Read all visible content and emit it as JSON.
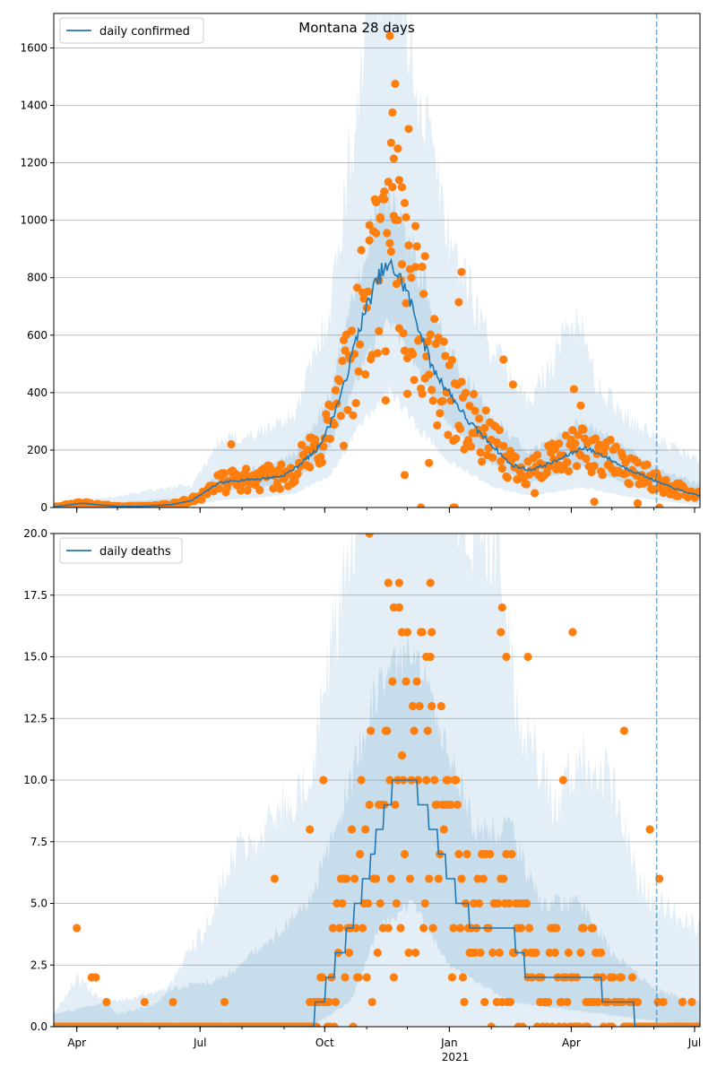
{
  "chart_data": [
    {
      "type": "line",
      "title": "Montana 28 days",
      "legend": [
        "daily confirmed"
      ],
      "legend_position": "top-left",
      "grid": "y",
      "ylim": [
        0,
        1720
      ],
      "yticks": [
        0,
        200,
        400,
        600,
        800,
        1000,
        1200,
        1400,
        1600
      ],
      "xlim": [
        "2020-03-15",
        "2021-07-05"
      ],
      "forecast_start": "2021-06-03",
      "colors": {
        "line": "#1f77b4",
        "points": "#ff7f0e",
        "band": "#1f77b4",
        "vline": "#1f77b4"
      },
      "line_anchors": [
        [
          "2020-03-15",
          2
        ],
        [
          "2020-03-28",
          10
        ],
        [
          "2020-04-05",
          15
        ],
        [
          "2020-04-15",
          10
        ],
        [
          "2020-05-01",
          4
        ],
        [
          "2020-05-20",
          4
        ],
        [
          "2020-06-10",
          10
        ],
        [
          "2020-06-25",
          25
        ],
        [
          "2020-07-05",
          55
        ],
        [
          "2020-07-15",
          85
        ],
        [
          "2020-07-30",
          95
        ],
        [
          "2020-08-15",
          100
        ],
        [
          "2020-08-31",
          110
        ],
        [
          "2020-09-10",
          140
        ],
        [
          "2020-09-25",
          200
        ],
        [
          "2020-10-05",
          290
        ],
        [
          "2020-10-15",
          420
        ],
        [
          "2020-10-25",
          600
        ],
        [
          "2020-11-05",
          750
        ],
        [
          "2020-11-12",
          820
        ],
        [
          "2020-11-20",
          840
        ],
        [
          "2020-11-30",
          760
        ],
        [
          "2020-12-10",
          620
        ],
        [
          "2020-12-20",
          480
        ],
        [
          "2021-01-01",
          400
        ],
        [
          "2021-01-15",
          300
        ],
        [
          "2021-02-01",
          220
        ],
        [
          "2021-02-15",
          150
        ],
        [
          "2021-03-01",
          130
        ],
        [
          "2021-03-20",
          160
        ],
        [
          "2021-04-10",
          210
        ],
        [
          "2021-04-25",
          180
        ],
        [
          "2021-05-10",
          140
        ],
        [
          "2021-05-25",
          110
        ],
        [
          "2021-06-03",
          90
        ],
        [
          "2021-06-20",
          60
        ],
        [
          "2021-07-05",
          40
        ]
      ],
      "line_style": "jagged",
      "line_seed": 7,
      "points_seed": 42,
      "points_noise": 0.42,
      "points": [
        [
          "2020-11-18",
          1642
        ],
        [
          "2020-11-22",
          1475
        ],
        [
          "2020-11-20",
          1375
        ],
        [
          "2020-12-02",
          1318
        ],
        [
          "2020-11-19",
          1270
        ],
        [
          "2020-11-24",
          1250
        ],
        [
          "2020-11-21",
          1215
        ],
        [
          "2020-11-25",
          1140
        ],
        [
          "2020-11-27",
          1115
        ],
        [
          "2020-11-14",
          1100
        ],
        [
          "2020-11-08",
          1063
        ],
        [
          "2020-11-29",
          1060
        ],
        [
          "2020-11-11",
          1010
        ],
        [
          "2020-11-30",
          1010
        ],
        [
          "2020-12-07",
          980
        ],
        [
          "2020-11-03",
          930
        ],
        [
          "2020-12-14",
          875
        ],
        [
          "2020-12-12",
          838
        ],
        [
          "2021-01-10",
          820
        ],
        [
          "2020-12-04",
          800
        ],
        [
          "2020-11-10",
          790
        ],
        [
          "2021-01-08",
          715
        ],
        [
          "2020-11-15",
          373
        ],
        [
          "2020-12-01",
          396
        ],
        [
          "2020-11-29",
          113
        ],
        [
          "2020-12-17",
          155
        ],
        [
          "2021-01-04",
          0
        ],
        [
          "2021-01-05",
          0
        ],
        [
          "2020-12-11",
          0
        ],
        [
          "2021-02-10",
          515
        ],
        [
          "2021-02-17",
          428
        ],
        [
          "2021-04-03",
          412
        ],
        [
          "2021-04-08",
          355
        ],
        [
          "2020-10-15",
          215
        ],
        [
          "2020-09-20",
          140
        ],
        [
          "2020-07-24",
          220
        ],
        [
          "2021-03-05",
          50
        ],
        [
          "2021-04-18",
          20
        ],
        [
          "2021-05-20",
          15
        ],
        [
          "2021-06-05",
          0
        ]
      ],
      "band_inner": [
        [
          "2020-03-15",
          1
        ],
        [
          "2020-06-25",
          18
        ],
        [
          "2020-07-15",
          55
        ],
        [
          "2020-08-15",
          70
        ],
        [
          "2020-09-10",
          95
        ],
        [
          "2020-10-05",
          210
        ],
        [
          "2020-10-25",
          450
        ],
        [
          "2020-11-12",
          620
        ],
        [
          "2020-11-20",
          640
        ],
        [
          "2020-12-10",
          460
        ],
        [
          "2021-01-01",
          290
        ],
        [
          "2021-02-01",
          150
        ],
        [
          "2021-03-01",
          85
        ],
        [
          "2021-04-10",
          140
        ],
        [
          "2021-05-10",
          85
        ],
        [
          "2021-06-03",
          55
        ],
        [
          "2021-07-05",
          20
        ]
      ],
      "band_inner_top": [
        [
          "2020-03-15",
          4
        ],
        [
          "2020-06-25",
          35
        ],
        [
          "2020-07-15",
          120
        ],
        [
          "2020-08-15",
          140
        ],
        [
          "2020-09-10",
          190
        ],
        [
          "2020-10-05",
          390
        ],
        [
          "2020-10-25",
          790
        ],
        [
          "2020-11-12",
          1080
        ],
        [
          "2020-11-20",
          1100
        ],
        [
          "2020-12-10",
          820
        ],
        [
          "2021-01-01",
          540
        ],
        [
          "2021-02-01",
          310
        ],
        [
          "2021-03-01",
          190
        ],
        [
          "2021-04-10",
          300
        ],
        [
          "2021-05-10",
          210
        ],
        [
          "2021-06-03",
          140
        ],
        [
          "2021-07-05",
          80
        ]
      ],
      "band_outer": [
        [
          "2020-03-15",
          0
        ],
        [
          "2020-06-25",
          5
        ],
        [
          "2020-07-15",
          25
        ],
        [
          "2020-08-15",
          35
        ],
        [
          "2020-09-10",
          50
        ],
        [
          "2020-10-05",
          110
        ],
        [
          "2020-10-25",
          270
        ],
        [
          "2020-11-12",
          380
        ],
        [
          "2020-11-20",
          400
        ],
        [
          "2020-12-10",
          270
        ],
        [
          "2021-01-01",
          160
        ],
        [
          "2021-02-01",
          75
        ],
        [
          "2021-03-01",
          40
        ],
        [
          "2021-04-10",
          70
        ],
        [
          "2021-05-10",
          40
        ],
        [
          "2021-06-03",
          25
        ],
        [
          "2021-07-05",
          8
        ]
      ],
      "band_outer_top": [
        [
          "2020-03-15",
          8
        ],
        [
          "2020-06-25",
          80
        ],
        [
          "2020-07-15",
          230
        ],
        [
          "2020-08-15",
          260
        ],
        [
          "2020-09-10",
          330
        ],
        [
          "2020-10-05",
          700
        ],
        [
          "2020-10-25",
          1400
        ],
        [
          "2020-11-05",
          1900
        ],
        [
          "2020-11-20",
          1900
        ],
        [
          "2020-12-10",
          1450
        ],
        [
          "2021-01-01",
          950
        ],
        [
          "2021-02-01",
          560
        ],
        [
          "2021-03-01",
          360
        ],
        [
          "2021-04-05",
          680
        ],
        [
          "2021-04-20",
          420
        ],
        [
          "2021-05-10",
          330
        ],
        [
          "2021-06-03",
          240
        ],
        [
          "2021-07-05",
          160
        ]
      ]
    },
    {
      "type": "line",
      "title": "",
      "legend": [
        "daily deaths"
      ],
      "legend_position": "top-left",
      "grid": "y",
      "ylim": [
        0,
        20
      ],
      "yticks": [
        0.0,
        2.5,
        5.0,
        7.5,
        10.0,
        12.5,
        15.0,
        17.5,
        20.0
      ],
      "yticklabels": [
        "0.0",
        "2.5",
        "5.0",
        "7.5",
        "10.0",
        "12.5",
        "15.0",
        "17.5",
        "20.0"
      ],
      "xlim": [
        "2020-03-15",
        "2021-07-05"
      ],
      "xticks": [
        "2020-04-01",
        "2020-07-01",
        "2020-10-01",
        "2021-01-01",
        "2021-04-01",
        "2021-07-01"
      ],
      "xticklabels": [
        "Apr",
        "Jul",
        "Oct",
        "Jan",
        "Apr",
        "Jul"
      ],
      "xsublabel": "2021",
      "forecast_start": "2021-06-03",
      "colors": {
        "line": "#1f77b4",
        "points": "#ff7f0e",
        "band": "#1f77b4",
        "vline": "#1f77b4"
      },
      "line_anchors": [
        [
          "2020-03-15",
          0
        ],
        [
          "2020-07-10",
          0
        ],
        [
          "2020-09-20",
          0
        ],
        [
          "2020-10-05",
          2
        ],
        [
          "2020-10-20",
          4
        ],
        [
          "2020-11-01",
          6
        ],
        [
          "2020-11-10",
          8
        ],
        [
          "2020-11-20",
          9.5
        ],
        [
          "2020-12-05",
          10
        ],
        [
          "2020-12-20",
          8
        ],
        [
          "2021-01-01",
          6
        ],
        [
          "2021-01-20",
          4
        ],
        [
          "2021-02-15",
          4
        ],
        [
          "2021-03-01",
          2
        ],
        [
          "2021-04-01",
          2
        ],
        [
          "2021-04-15",
          2
        ],
        [
          "2021-05-01",
          1
        ],
        [
          "2021-06-03",
          0
        ],
        [
          "2021-07-05",
          0
        ]
      ],
      "line_style": "steps",
      "line_seed": 11,
      "points_seed": 5,
      "points_noise": 0.6,
      "points": [
        [
          "2020-11-03",
          20
        ],
        [
          "2020-11-17",
          18
        ],
        [
          "2020-11-25",
          18
        ],
        [
          "2020-12-18",
          18
        ],
        [
          "2020-11-21",
          17
        ],
        [
          "2021-02-09",
          17
        ],
        [
          "2020-11-27",
          16
        ],
        [
          "2020-12-19",
          16
        ],
        [
          "2021-02-08",
          16
        ],
        [
          "2021-04-02",
          16
        ],
        [
          "2021-02-12",
          15
        ],
        [
          "2020-12-15",
          15
        ],
        [
          "2021-02-28",
          15
        ],
        [
          "2021-05-10",
          12
        ],
        [
          "2020-09-30",
          10
        ],
        [
          "2021-03-26",
          10
        ],
        [
          "2020-09-20",
          8
        ],
        [
          "2021-05-29",
          8
        ],
        [
          "2020-04-01",
          4
        ],
        [
          "2020-04-12",
          2
        ],
        [
          "2020-04-15",
          2
        ],
        [
          "2020-08-25",
          6
        ],
        [
          "2021-06-05",
          6
        ]
      ],
      "band_inner": [
        [
          "2020-03-15",
          0
        ],
        [
          "2020-09-20",
          0
        ],
        [
          "2020-10-20",
          1
        ],
        [
          "2020-11-10",
          4
        ],
        [
          "2020-12-05",
          5
        ],
        [
          "2021-01-01",
          2.5
        ],
        [
          "2021-02-15",
          1
        ],
        [
          "2021-07-05",
          0
        ]
      ],
      "band_inner_top": [
        [
          "2020-03-15",
          0.5
        ],
        [
          "2020-07-20",
          2
        ],
        [
          "2020-09-20",
          5
        ],
        [
          "2020-10-20",
          10
        ],
        [
          "2020-11-10",
          14
        ],
        [
          "2020-12-05",
          15
        ],
        [
          "2020-12-20",
          13
        ],
        [
          "2021-01-20",
          8
        ],
        [
          "2021-02-15",
          8
        ],
        [
          "2021-03-10",
          5
        ],
        [
          "2021-04-10",
          5
        ],
        [
          "2021-05-01",
          3
        ],
        [
          "2021-06-03",
          1.5
        ],
        [
          "2021-07-05",
          1
        ]
      ],
      "band_outer": [
        [
          "2020-03-15",
          0
        ],
        [
          "2021-07-05",
          0
        ]
      ],
      "band_outer_top": [
        [
          "2020-03-15",
          0.5
        ],
        [
          "2020-04-01",
          2
        ],
        [
          "2020-05-01",
          0.5
        ],
        [
          "2020-06-01",
          1
        ],
        [
          "2020-07-05",
          4
        ],
        [
          "2020-07-25",
          7
        ],
        [
          "2020-09-20",
          10
        ],
        [
          "2020-10-20",
          20
        ],
        [
          "2020-11-01",
          24
        ],
        [
          "2020-12-20",
          24
        ],
        [
          "2021-01-10",
          21
        ],
        [
          "2021-02-05",
          20
        ],
        [
          "2021-02-20",
          13
        ],
        [
          "2021-03-20",
          9
        ],
        [
          "2021-04-05",
          11
        ],
        [
          "2021-05-01",
          10
        ],
        [
          "2021-05-20",
          6
        ],
        [
          "2021-06-03",
          5
        ],
        [
          "2021-07-05",
          4
        ]
      ]
    }
  ]
}
